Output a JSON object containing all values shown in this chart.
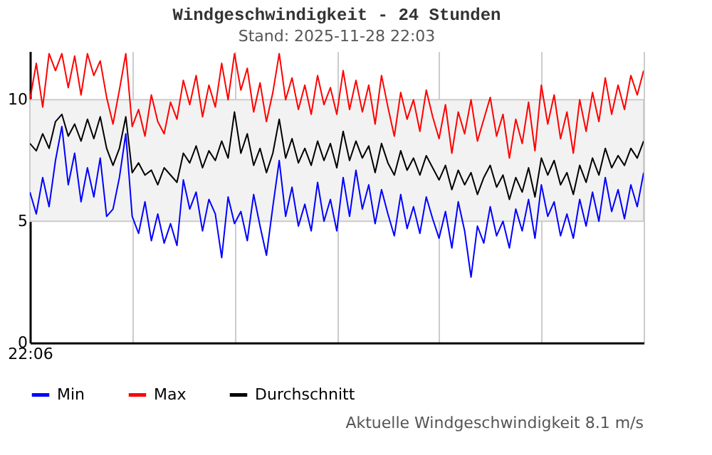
{
  "chart_data": {
    "type": "line",
    "title": "Windgeschwindigkeit - 24 Stunden",
    "subtitle": "Stand: 2025-11-28 22:03",
    "annotations": [
      "Aktuelle Windgeschwindigkeit 8.1 m/s"
    ],
    "categories": [
      "22:06",
      null,
      null,
      null,
      null,
      null,
      null,
      null,
      null,
      null,
      null,
      null,
      null,
      null,
      null,
      null,
      null,
      null,
      null,
      null,
      null,
      null,
      null,
      null,
      null,
      null,
      null,
      null,
      null,
      null,
      null,
      null,
      null,
      null,
      null,
      null,
      null,
      null,
      null,
      null,
      null,
      null,
      null,
      null,
      null,
      null,
      null,
      null,
      null,
      null,
      null,
      null,
      null,
      null,
      null,
      null,
      null,
      null,
      null,
      null,
      null,
      null,
      null,
      null,
      null,
      null,
      null,
      null,
      null,
      null,
      null,
      null,
      null,
      null,
      null,
      null,
      null,
      null,
      null,
      null,
      null,
      null,
      null,
      null,
      null,
      null,
      null,
      null,
      null,
      null,
      null,
      null,
      null,
      null,
      null,
      null,
      null
    ],
    "series": [
      {
        "name": "Min",
        "color": "#0000ff",
        "values": [
          6.2,
          5.3,
          6.8,
          5.6,
          7.5,
          8.9,
          6.5,
          7.8,
          5.8,
          7.2,
          6.0,
          7.6,
          5.2,
          5.5,
          6.8,
          8.6,
          5.2,
          4.5,
          5.8,
          4.2,
          5.3,
          4.1,
          4.9,
          4.0,
          6.7,
          5.5,
          6.2,
          4.6,
          5.9,
          5.3,
          3.5,
          6.0,
          4.9,
          5.4,
          4.2,
          6.1,
          4.8,
          3.6,
          5.6,
          7.5,
          5.2,
          6.4,
          4.8,
          5.7,
          4.6,
          6.6,
          5.0,
          5.9,
          4.6,
          6.8,
          5.2,
          7.1,
          5.5,
          6.5,
          4.9,
          6.3,
          5.3,
          4.4,
          6.1,
          4.7,
          5.6,
          4.5,
          6.0,
          5.1,
          4.3,
          5.4,
          3.9,
          5.8,
          4.6,
          2.7,
          4.8,
          4.1,
          5.6,
          4.4,
          5.0,
          3.9,
          5.5,
          4.6,
          5.9,
          4.3,
          6.5,
          5.2,
          5.8,
          4.4,
          5.3,
          4.3,
          5.9,
          4.8,
          6.2,
          5.0,
          6.8,
          5.4,
          6.3,
          5.1,
          6.5,
          5.6,
          7.0
        ]
      },
      {
        "name": "Max",
        "color": "#ff0000",
        "values": [
          10.0,
          11.5,
          9.7,
          11.9,
          11.2,
          11.9,
          10.5,
          11.8,
          10.2,
          11.9,
          11.0,
          11.6,
          10.1,
          9.0,
          10.4,
          11.9,
          8.9,
          9.6,
          8.5,
          10.2,
          9.1,
          8.6,
          9.9,
          9.2,
          10.8,
          9.8,
          11.0,
          9.3,
          10.6,
          9.7,
          11.5,
          10.0,
          11.9,
          10.4,
          11.3,
          9.5,
          10.7,
          9.1,
          10.3,
          11.9,
          10.0,
          10.9,
          9.6,
          10.6,
          9.4,
          11.0,
          9.8,
          10.5,
          9.4,
          11.2,
          9.6,
          10.8,
          9.5,
          10.6,
          9.0,
          11.0,
          9.7,
          8.5,
          10.3,
          9.2,
          10.0,
          8.7,
          10.4,
          9.3,
          8.4,
          9.8,
          7.8,
          9.5,
          8.6,
          10.0,
          8.3,
          9.2,
          10.1,
          8.5,
          9.4,
          7.6,
          9.2,
          8.2,
          9.9,
          7.9,
          10.6,
          9.0,
          10.2,
          8.4,
          9.5,
          7.8,
          10.0,
          8.7,
          10.3,
          9.1,
          10.9,
          9.4,
          10.6,
          9.6,
          11.0,
          10.2,
          11.2
        ]
      },
      {
        "name": "Durchschnitt",
        "color": "#000000",
        "values": [
          8.2,
          7.9,
          8.6,
          8.0,
          9.1,
          9.4,
          8.5,
          9.0,
          8.3,
          9.2,
          8.4,
          9.3,
          8.0,
          7.3,
          8.0,
          9.3,
          7.0,
          7.4,
          6.9,
          7.1,
          6.5,
          7.2,
          6.9,
          6.6,
          7.8,
          7.4,
          8.1,
          7.2,
          7.9,
          7.5,
          8.3,
          7.6,
          9.5,
          7.8,
          8.6,
          7.3,
          8.0,
          7.0,
          7.8,
          9.2,
          7.6,
          8.4,
          7.4,
          8.0,
          7.3,
          8.3,
          7.5,
          8.2,
          7.2,
          8.7,
          7.5,
          8.3,
          7.6,
          8.1,
          7.0,
          8.2,
          7.4,
          6.9,
          7.9,
          7.1,
          7.6,
          6.9,
          7.7,
          7.2,
          6.7,
          7.3,
          6.3,
          7.1,
          6.5,
          7.0,
          6.1,
          6.8,
          7.3,
          6.4,
          6.9,
          5.9,
          6.8,
          6.2,
          7.2,
          6.0,
          7.6,
          6.9,
          7.5,
          6.5,
          7.0,
          6.1,
          7.3,
          6.6,
          7.6,
          6.9,
          8.0,
          7.2,
          7.7,
          7.3,
          8.0,
          7.6,
          8.3
        ]
      }
    ],
    "ylim": [
      0,
      12
    ],
    "yticks": [
      0,
      5,
      10
    ],
    "bands": [
      {
        "axis": "y",
        "from": 5,
        "to": 10,
        "color": "#f2f2f2"
      }
    ],
    "grid": "x",
    "legend": "bottom",
    "marker": "none",
    "line_style": "solid"
  }
}
